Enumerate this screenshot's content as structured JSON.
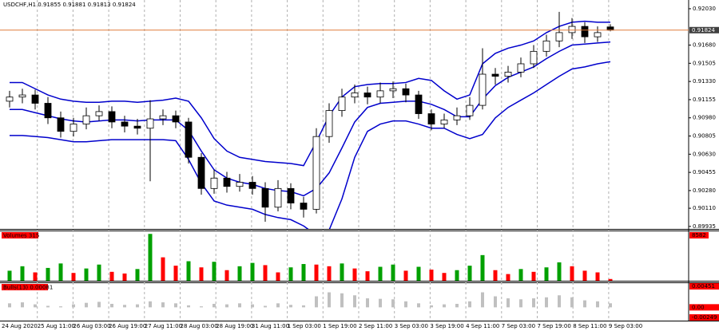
{
  "chart_data": [
    {
      "type": "candlestick",
      "title": "USDCHF,H1  0.91855 0.91881 0.91813 0.91824",
      "time_labels": [
        "24 Aug 2020",
        "25 Aug 11:00",
        "26 Aug 03:00",
        "26 Aug 19:00",
        "27 Aug 11:00",
        "28 Aug 03:00",
        "28 Aug 19:00",
        "31 Aug 11:00",
        "1 Sep 03:00",
        "1 Sep 19:00",
        "2 Sep 11:00",
        "3 Sep 03:00",
        "3 Sep 19:00",
        "4 Sep 11:00",
        "7 Sep 03:00",
        "7 Sep 19:00",
        "8 Sep 11:00",
        "9 Sep 03:00"
      ],
      "open": [
        0.9114,
        0.9118,
        0.912,
        0.9112,
        0.9098,
        0.9085,
        0.9092,
        0.91,
        0.9104,
        0.9094,
        0.909,
        0.9088,
        0.9097,
        0.91,
        0.9094,
        0.906,
        0.903,
        0.904,
        0.9032,
        0.9036,
        0.903,
        0.9012,
        0.903,
        0.9016,
        0.901,
        0.908,
        0.9105,
        0.9118,
        0.9122,
        0.9118,
        0.9124,
        0.9126,
        0.912,
        0.9102,
        0.9092,
        0.9096,
        0.91,
        0.911,
        0.914,
        0.9138,
        0.9142,
        0.915,
        0.9162,
        0.9172,
        0.918,
        0.9186,
        0.9176,
        0.91855
      ],
      "high": [
        0.9124,
        0.9126,
        0.9125,
        0.9118,
        0.9104,
        0.9098,
        0.9108,
        0.911,
        0.9109,
        0.91,
        0.9097,
        0.9115,
        0.9106,
        0.9105,
        0.9098,
        0.9064,
        0.9048,
        0.9046,
        0.9044,
        0.9042,
        0.9036,
        0.9038,
        0.9035,
        0.9022,
        0.9088,
        0.9112,
        0.9126,
        0.913,
        0.9128,
        0.9132,
        0.9133,
        0.9131,
        0.9124,
        0.9106,
        0.9102,
        0.9108,
        0.9118,
        0.9165,
        0.9146,
        0.9148,
        0.9156,
        0.9168,
        0.9178,
        0.92,
        0.9194,
        0.919,
        0.9186,
        0.91881
      ],
      "low": [
        0.9108,
        0.9112,
        0.9106,
        0.9092,
        0.9079,
        0.908,
        0.9087,
        0.9095,
        0.9088,
        0.9084,
        0.9082,
        0.9037,
        0.9091,
        0.9088,
        0.9054,
        0.9024,
        0.9025,
        0.9026,
        0.9027,
        0.9024,
        0.8998,
        0.9008,
        0.901,
        0.9002,
        0.9006,
        0.9074,
        0.9099,
        0.9112,
        0.9111,
        0.9112,
        0.9117,
        0.9113,
        0.9097,
        0.9086,
        0.9088,
        0.9091,
        0.9096,
        0.9106,
        0.913,
        0.9132,
        0.9137,
        0.9146,
        0.9157,
        0.9166,
        0.9174,
        0.917,
        0.9171,
        0.91813
      ],
      "close": [
        0.9118,
        0.912,
        0.9112,
        0.9098,
        0.9085,
        0.9092,
        0.91,
        0.9104,
        0.9094,
        0.909,
        0.9088,
        0.9097,
        0.91,
        0.9094,
        0.906,
        0.903,
        0.904,
        0.9032,
        0.9036,
        0.903,
        0.9012,
        0.903,
        0.9016,
        0.901,
        0.908,
        0.9105,
        0.9118,
        0.9122,
        0.9118,
        0.9124,
        0.9126,
        0.912,
        0.9102,
        0.9092,
        0.9096,
        0.91,
        0.911,
        0.914,
        0.9138,
        0.9142,
        0.915,
        0.9162,
        0.9172,
        0.918,
        0.9186,
        0.9176,
        0.918,
        0.91824
      ],
      "bands": {
        "color": "#0000cc",
        "upper": [
          0.9132,
          0.9132,
          0.9126,
          0.912,
          0.9116,
          0.9114,
          0.9113,
          0.9113,
          0.9114,
          0.9114,
          0.9113,
          0.9114,
          0.9115,
          0.9117,
          0.9114,
          0.9098,
          0.9078,
          0.9066,
          0.906,
          0.9058,
          0.9056,
          0.9055,
          0.9054,
          0.9052,
          0.9075,
          0.91,
          0.9118,
          0.9128,
          0.913,
          0.9131,
          0.9131,
          0.9132,
          0.9136,
          0.9134,
          0.9124,
          0.9116,
          0.912,
          0.915,
          0.916,
          0.9165,
          0.9168,
          0.9172,
          0.918,
          0.9186,
          0.919,
          0.9191,
          0.919,
          0.919
        ],
        "middle": [
          0.9106,
          0.9106,
          0.9103,
          0.91,
          0.9097,
          0.9095,
          0.9094,
          0.9095,
          0.9096,
          0.9096,
          0.9095,
          0.9096,
          0.9096,
          0.9096,
          0.9086,
          0.9066,
          0.9048,
          0.904,
          0.9036,
          0.9034,
          0.903,
          0.9028,
          0.9027,
          0.9023,
          0.903,
          0.9045,
          0.9069,
          0.9094,
          0.9108,
          0.9112,
          0.9113,
          0.9114,
          0.9114,
          0.9111,
          0.9106,
          0.9099,
          0.9099,
          0.9116,
          0.9129,
          0.9137,
          0.9142,
          0.9147,
          0.9155,
          0.9162,
          0.9168,
          0.9169,
          0.917,
          0.9171
        ],
        "lower": [
          0.9081,
          0.9081,
          0.908,
          0.9079,
          0.9077,
          0.9075,
          0.9075,
          0.9076,
          0.9077,
          0.9077,
          0.9077,
          0.9077,
          0.9077,
          0.9076,
          0.9058,
          0.9035,
          0.9018,
          0.9014,
          0.9012,
          0.901,
          0.9005,
          0.9002,
          0.9,
          0.8994,
          0.8985,
          0.899,
          0.902,
          0.906,
          0.9085,
          0.9092,
          0.9095,
          0.9095,
          0.9092,
          0.9088,
          0.9088,
          0.9082,
          0.9078,
          0.9082,
          0.9098,
          0.9108,
          0.9115,
          0.9122,
          0.913,
          0.9138,
          0.9145,
          0.9147,
          0.915,
          0.9152
        ]
      },
      "current_price": 0.91824,
      "current_price_color": "#e07b3a",
      "ylim": [
        0.89911,
        0.92114
      ],
      "yticks": [
        {
          "value": 0.9203,
          "label": "0.92030"
        },
        {
          "value": 0.9168,
          "label": "0.91680"
        },
        0.91505,
        {
          "value": 0.9133,
          "label": "0.91330"
        },
        0.91155,
        {
          "value": 0.9098,
          "label": "0.90980"
        },
        0.90805,
        {
          "value": 0.9063,
          "label": "0.90630"
        },
        0.90455,
        {
          "value": 0.9028,
          "label": "0.90280"
        },
        {
          "value": 0.9011,
          "label": "0.90110"
        },
        0.89935
      ],
      "grid": true
    },
    {
      "type": "volume",
      "label": "Volumes 315",
      "up_color": "#00a000",
      "down_color": "#ff0000",
      "values": [
        1800,
        2600,
        1500,
        2300,
        3100,
        1400,
        2200,
        2900,
        1600,
        1300,
        2100,
        8400,
        4200,
        2700,
        3500,
        2400,
        3400,
        1900,
        2600,
        3200,
        2800,
        1500,
        2400,
        3000,
        2900,
        2600,
        3100,
        2200,
        1700,
        2500,
        2900,
        1800,
        2500,
        2000,
        1400,
        1900,
        2700,
        4600,
        1900,
        1200,
        2100,
        1600,
        2400,
        3300,
        2600,
        1800,
        1500,
        315
      ],
      "ylim": [
        0,
        8582
      ],
      "yticks": [
        8582
      ]
    },
    {
      "type": "histogram",
      "label": "Bulls(13) 0.00081",
      "color": "#c0c0c0",
      "values": [
        0.0008,
        0.001,
        0.0006,
        0.0003,
        0.0002,
        0.0006,
        0.0009,
        0.0011,
        0.0007,
        0.0005,
        0.0006,
        0.0012,
        0.001,
        0.0008,
        0.0004,
        0.0002,
        0.0007,
        0.0006,
        0.0008,
        0.0006,
        0.0003,
        0.0008,
        0.0005,
        0.0004,
        0.0022,
        0.003,
        0.0028,
        0.0024,
        0.0018,
        0.0017,
        0.0016,
        0.0012,
        0.0008,
        0.0004,
        0.0006,
        0.0007,
        0.0012,
        0.003,
        0.0022,
        0.0018,
        0.0016,
        0.0018,
        0.002,
        0.0024,
        0.002,
        0.0014,
        0.0012,
        0.00081
      ],
      "ylim": [
        -0.00249,
        0.00451
      ],
      "yticks": [
        0.00451,
        {
          "value": 0,
          "label": "0.00"
        },
        -0.00249
      ]
    }
  ]
}
